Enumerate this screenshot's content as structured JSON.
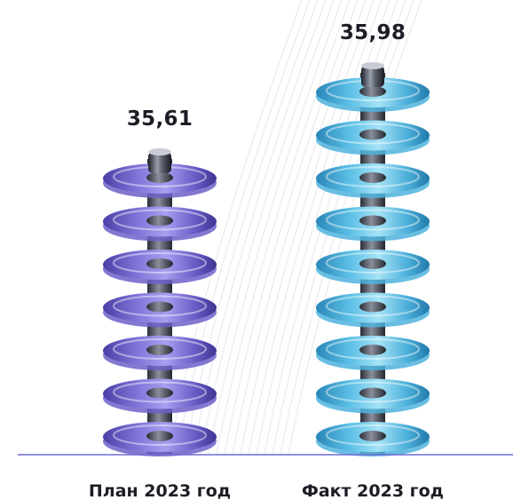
{
  "chart_data": {
    "type": "bar",
    "title": "",
    "xlabel": "",
    "ylabel": "",
    "categories": [
      "План 2023 год",
      "Факт 2023 год"
    ],
    "values": [
      35.61,
      35.98
    ],
    "value_labels": [
      "35,61",
      "35,98"
    ],
    "grid": false,
    "legend": "none"
  },
  "colors": {
    "plan": "#6d62c9",
    "fact": "#4fb3dd",
    "baseline": "#6f6bd4",
    "text": "#1d1d26",
    "cap": "#3b3f4a"
  }
}
